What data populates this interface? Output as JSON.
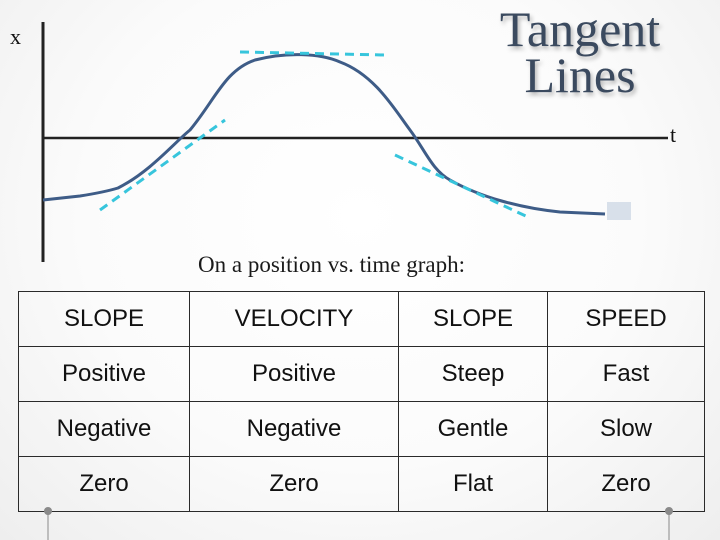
{
  "title_line1": "Tangent",
  "title_line2": "Lines",
  "graph": {
    "y_axis_label": "x",
    "x_axis_label": "t",
    "curve_color": "#3e5c87",
    "tangent_color": "#37c5dc"
  },
  "caption": "On a position vs. time graph:",
  "table": {
    "rows": [
      [
        "SLOPE",
        "VELOCITY",
        "SLOPE",
        "SPEED"
      ],
      [
        "Positive",
        "Positive",
        "Steep",
        "Fast"
      ],
      [
        "Negative",
        "Negative",
        "Gentle",
        "Slow"
      ],
      [
        "Zero",
        "Zero",
        "Flat",
        "Zero"
      ]
    ]
  }
}
